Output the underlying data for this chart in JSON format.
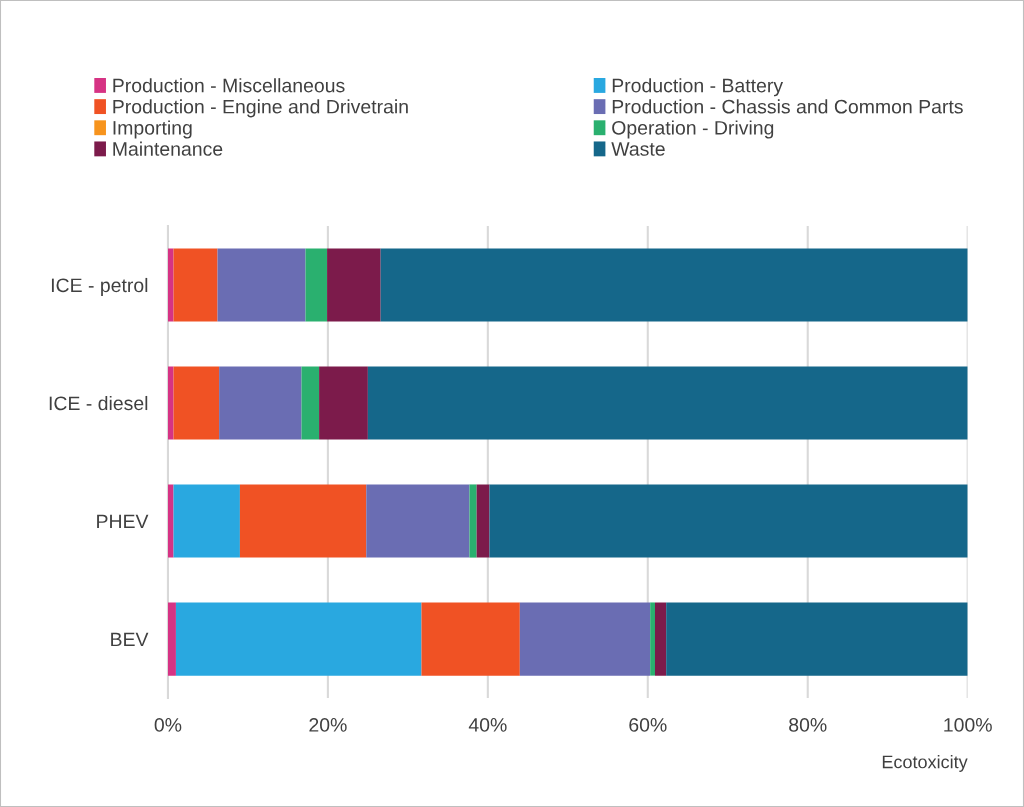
{
  "chart_data": {
    "type": "bar",
    "orientation": "horizontal",
    "stacked": true,
    "xlabel": "Ecotoxicity",
    "categories": [
      "ICE - petrol",
      "ICE - diesel",
      "PHEV",
      "BEV"
    ],
    "series": [
      {
        "name": "Production - Miscellaneous",
        "color": "#d63384",
        "values": [
          0.7,
          0.7,
          0.7,
          1.0
        ]
      },
      {
        "name": "Production - Battery",
        "color": "#29a8e0",
        "values": [
          0,
          0,
          8.3,
          30.7
        ]
      },
      {
        "name": "Production - Engine and Drivetrain",
        "color": "#f05224",
        "values": [
          5.5,
          5.7,
          15.8,
          12.3
        ]
      },
      {
        "name": "Production - Chassis and Common Parts",
        "color": "#6a6db3",
        "values": [
          11.0,
          10.3,
          12.9,
          16.3
        ]
      },
      {
        "name": "Importing",
        "color": "#f7941d",
        "values": [
          0,
          0,
          0,
          0
        ]
      },
      {
        "name": "Operation - Driving",
        "color": "#2ab06f",
        "values": [
          2.7,
          2.2,
          0.9,
          0.6
        ]
      },
      {
        "name": "Maintenance",
        "color": "#7c1b4b",
        "values": [
          6.7,
          6.1,
          1.6,
          1.4
        ]
      },
      {
        "name": "Waste",
        "color": "#15678a",
        "values": [
          73.4,
          75.0,
          59.8,
          37.7
        ]
      }
    ],
    "xlim": [
      0,
      100
    ],
    "xticks": [
      {
        "value": 0,
        "label": "0%"
      },
      {
        "value": 20,
        "label": "20%"
      },
      {
        "value": 40,
        "label": "40%"
      },
      {
        "value": 60,
        "label": "60%"
      },
      {
        "value": 80,
        "label": "80%"
      },
      {
        "value": 100,
        "label": "100%"
      }
    ],
    "grid": "x",
    "legend": "top"
  }
}
